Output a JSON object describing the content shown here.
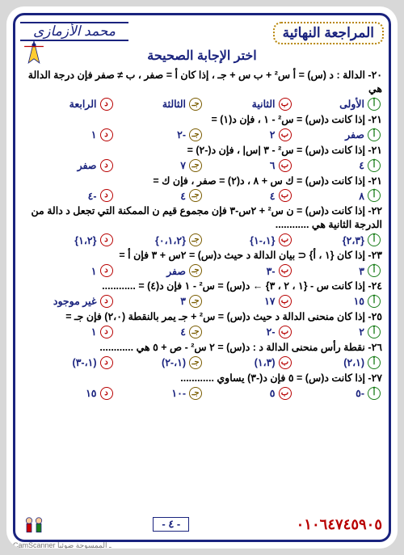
{
  "header": {
    "main_title": "المراجعة النهائية",
    "author": "محمد الأزمازى",
    "subtitle": "اختر الإجابة الصحيحة"
  },
  "letters": {
    "a": "أ",
    "b": "ب",
    "c": "جـ",
    "d": "د"
  },
  "questions": [
    {
      "text": "٢٠- الدالة : د (س) = أ س² + ب س + جـ ، إذا كان أ = صفر ، ب ≠ صفر فإن درجة الدالة هي",
      "opts": [
        "الأولى",
        "الثانية",
        "الثالثة",
        "الرابعة"
      ]
    },
    {
      "text": "٢١- إذا كانت د(س) = س² - ١ ، فإن د(١) =",
      "opts": [
        "صفر",
        "٢",
        "-٢",
        "١"
      ]
    },
    {
      "text": "٢١- إذا كانت د(س) = س² - ٣ |س| ، فإن د(-٢) =",
      "opts": [
        "٤",
        "٦",
        "٧",
        "صفر"
      ]
    },
    {
      "text": "٢١- إذا كانت د(س) = ك س + ٨ ، د(٢) = صفر ، فإن ك =",
      "opts": [
        "٨",
        "٤",
        "٤",
        "-٤"
      ]
    },
    {
      "text": "٢٢- إذا كانت د(س) = ن س² + ٢س-٣ فإن مجموع قيم ن الممكنة التي تجعل د دالة من الدرجة الثانية هي ............",
      "opts": [
        "{٢،٣}",
        "{١،-١}",
        "{٠،١،٢}",
        "{١،٢}"
      ]
    },
    {
      "text": "٢٣- إذا كان {١ ، أ} ⊂ بيان الدالة د حيث د(س) = ٢س + ٣ فإن أ =",
      "opts": [
        "٣",
        "-٣",
        "صفر",
        "١"
      ]
    },
    {
      "text": "٢٤- إذا كانت س - {١ ، ٢ ، ٣} ← د(س) = س² - ١ فإن د(٤) = ............",
      "opts": [
        "١٥",
        "١٧",
        "٣",
        "غير موجود"
      ]
    },
    {
      "text": "٢٥- إذا كان منحنى الدالة د حيث د(س) = س² + جـ يمر بالنقطة (٢،٠) فإن جـ =",
      "opts": [
        "٢",
        "-٢",
        "٤",
        "١"
      ]
    },
    {
      "text": "٢٦- نقطة رأس منحنى الدالة د : د(س) = ٢ س² - ص + ٥ هي ............",
      "opts": [
        "(٢،١)",
        "(١،٣)",
        "(١،-٢)",
        "(١،-٣)"
      ]
    },
    {
      "text": "٢٧- إذا كانت د(س) = ٥ فإن د(-٣) يساوي ............",
      "opts": [
        "-٥",
        "٥",
        "-١٠",
        "١٥"
      ]
    }
  ],
  "footer": {
    "phone": "٠١٠٦٤٧٤٥٩٠٥",
    "page": "- ٤ -",
    "scan": "CamScanner ـ الممسوحة ضوئيا"
  }
}
